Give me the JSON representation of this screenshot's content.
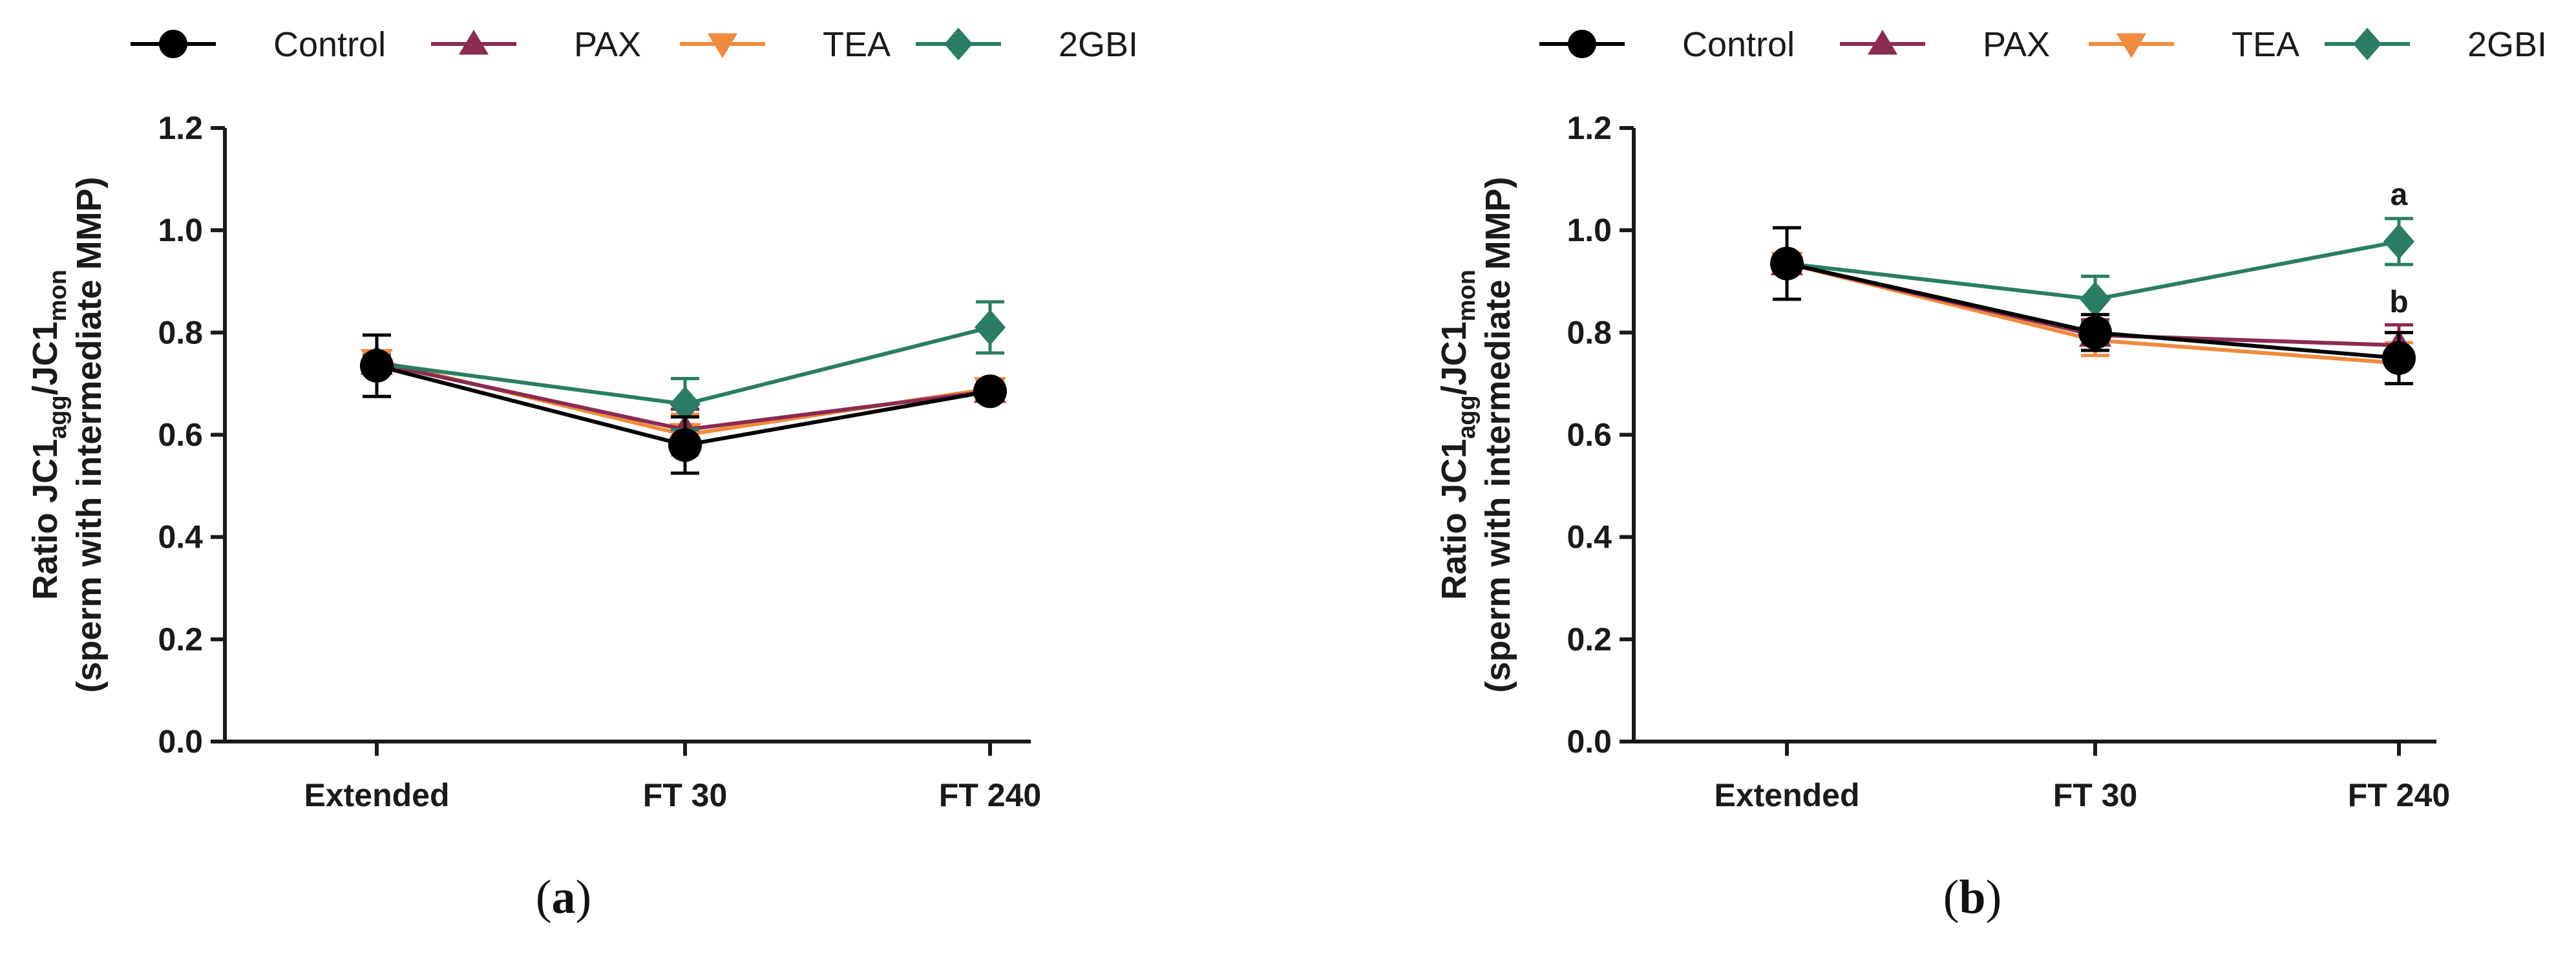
{
  "chart_data": [
    {
      "type": "line",
      "panel_label": "(a)",
      "categories": [
        "Extended",
        "FT 30",
        "FT 240"
      ],
      "ylabel": "Ratio JC1agg/JC1mon (sperm with intermediate MMP)",
      "ylabel_parts": {
        "prefix": "Ratio JC1",
        "sub1": "agg",
        "mid": "/JC1",
        "sub2": "mon",
        "line2": "(sperm with intermediate MMP)"
      },
      "ylim": [
        0,
        1.2
      ],
      "yticks": [
        "0.0",
        "0.2",
        "0.4",
        "0.6",
        "0.8",
        "1.0",
        "1.2"
      ],
      "legend_position": "top",
      "series": [
        {
          "name": "Control",
          "color": "#000000",
          "marker": "circle",
          "values": [
            0.735,
            0.58,
            0.685
          ],
          "errors": [
            0.06,
            0.055,
            0.015
          ]
        },
        {
          "name": "PAX",
          "color": "#8b2b52",
          "marker": "triangle-up",
          "values": [
            0.74,
            0.61,
            0.685
          ],
          "errors": [
            0.015,
            0.04,
            0.015
          ]
        },
        {
          "name": "TEA",
          "color": "#f08a3c",
          "marker": "triangle-down",
          "values": [
            0.745,
            0.6,
            0.69
          ],
          "errors": [
            0.015,
            0.04,
            0.015
          ]
        },
        {
          "name": "2GBI",
          "color": "#2a7d64",
          "marker": "diamond",
          "values": [
            0.74,
            0.66,
            0.81
          ],
          "errors": [
            0.015,
            0.05,
            0.05
          ]
        }
      ],
      "annotations": []
    },
    {
      "type": "line",
      "panel_label": "(b)",
      "categories": [
        "Extended",
        "FT 30",
        "FT 240"
      ],
      "ylabel": "Ratio JC1agg/JC1mon (sperm with intermediate MMP)",
      "ylabel_parts": {
        "prefix": "Ratio JC1",
        "sub1": "agg",
        "mid": "/JC1",
        "sub2": "mon",
        "line2": "(sperm with intermediate MMP)"
      },
      "ylim": [
        0,
        1.2
      ],
      "yticks": [
        "0.0",
        "0.2",
        "0.4",
        "0.6",
        "0.8",
        "1.0",
        "1.2"
      ],
      "legend_position": "top",
      "series": [
        {
          "name": "Control",
          "color": "#000000",
          "marker": "circle",
          "values": [
            0.935,
            0.8,
            0.75
          ],
          "errors": [
            0.07,
            0.035,
            0.05
          ]
        },
        {
          "name": "PAX",
          "color": "#8b2b52",
          "marker": "triangle-up",
          "values": [
            0.935,
            0.795,
            0.775
          ],
          "errors": [
            0.015,
            0.03,
            0.04
          ]
        },
        {
          "name": "TEA",
          "color": "#f08a3c",
          "marker": "triangle-down",
          "values": [
            0.935,
            0.785,
            0.74
          ],
          "errors": [
            0.015,
            0.03,
            0.04
          ]
        },
        {
          "name": "2GBI",
          "color": "#2a7d64",
          "marker": "diamond",
          "values": [
            0.935,
            0.865,
            0.978
          ],
          "errors": [
            0.015,
            0.045,
            0.045
          ]
        }
      ],
      "annotations": [
        {
          "text": "a",
          "category": "FT 240",
          "y": 1.07
        },
        {
          "text": "b",
          "category": "FT 240",
          "y": 0.86
        }
      ]
    }
  ]
}
